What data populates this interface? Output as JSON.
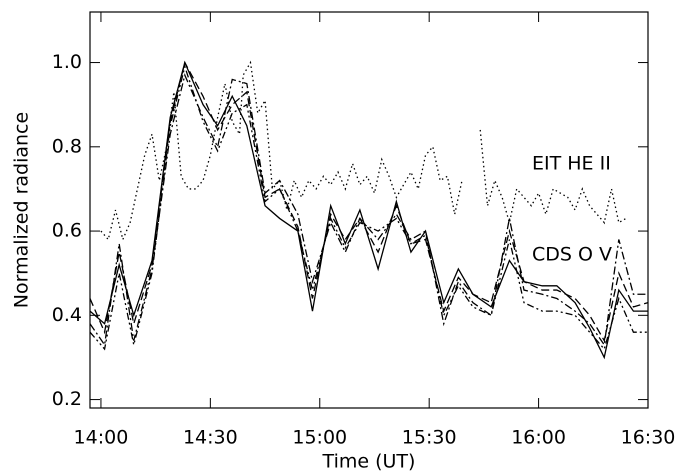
{
  "chart_data": {
    "type": "line",
    "xlabel": "Time (UT)",
    "ylabel": "Normalized radiance",
    "annotations": [
      "EIT HE II",
      "CDS O V"
    ],
    "xlim": [
      837,
      990
    ],
    "ylim": [
      0.18,
      1.12
    ],
    "xticks": [
      {
        "value": 840,
        "label": "14:00"
      },
      {
        "value": 870,
        "label": "14:30"
      },
      {
        "value": 900,
        "label": "15:00"
      },
      {
        "value": 930,
        "label": "15:30"
      },
      {
        "value": 960,
        "label": "16:00"
      },
      {
        "value": 990,
        "label": "16:30"
      }
    ],
    "yticks": [
      0.2,
      0.4,
      0.6,
      0.8,
      {
        "value": 1.0,
        "label": "1.0"
      }
    ],
    "series": [
      {
        "color": "#000000",
        "dash": "solid",
        "x": [
          837,
          841,
          845,
          849,
          854,
          859,
          863,
          868,
          872,
          876,
          880,
          885,
          889,
          894,
          898,
          903,
          907,
          911,
          916,
          921,
          925,
          929,
          934,
          938,
          942,
          947,
          952,
          956,
          961,
          965,
          970,
          974,
          978,
          982,
          986,
          990
        ],
        "values": [
          0.41,
          0.38,
          0.52,
          0.4,
          0.53,
          0.87,
          1.0,
          0.9,
          0.85,
          0.92,
          0.85,
          0.66,
          0.63,
          0.6,
          0.41,
          0.66,
          0.57,
          0.65,
          0.51,
          0.67,
          0.55,
          0.6,
          0.43,
          0.51,
          0.45,
          0.42,
          0.53,
          0.48,
          0.47,
          0.47,
          0.43,
          0.37,
          0.3,
          0.46,
          0.41,
          0.41
        ]
      },
      {
        "color": "#000000",
        "dash": "dashed",
        "x": [
          837,
          841,
          845,
          849,
          854,
          859,
          863,
          868,
          872,
          876,
          880,
          885,
          889,
          894,
          898,
          903,
          907,
          911,
          916,
          921,
          925,
          929,
          934,
          938,
          942,
          947,
          952,
          956,
          961,
          965,
          970,
          974,
          978,
          982,
          986,
          990
        ],
        "values": [
          0.44,
          0.36,
          0.55,
          0.38,
          0.52,
          0.86,
          1.0,
          0.92,
          0.84,
          0.9,
          0.93,
          0.68,
          0.7,
          0.61,
          0.44,
          0.64,
          0.58,
          0.63,
          0.55,
          0.66,
          0.57,
          0.58,
          0.41,
          0.49,
          0.45,
          0.43,
          0.6,
          0.48,
          0.46,
          0.46,
          0.44,
          0.4,
          0.34,
          0.5,
          0.42,
          0.43
        ]
      },
      {
        "color": "#000000",
        "dash": "dashdot",
        "x": [
          837,
          841,
          845,
          849,
          854,
          859,
          863,
          868,
          872,
          876,
          880,
          885,
          889,
          894,
          898,
          903,
          907,
          911,
          916,
          921,
          925,
          929,
          934,
          938,
          942,
          947,
          952,
          956,
          961,
          965,
          970,
          974,
          978,
          982,
          986,
          990
        ],
        "values": [
          0.38,
          0.33,
          0.57,
          0.34,
          0.51,
          0.83,
          0.97,
          0.87,
          0.8,
          0.96,
          0.95,
          0.69,
          0.72,
          0.64,
          0.48,
          0.62,
          0.55,
          0.63,
          0.58,
          0.64,
          0.58,
          0.6,
          0.38,
          0.48,
          0.43,
          0.4,
          0.63,
          0.46,
          0.45,
          0.44,
          0.41,
          0.38,
          0.33,
          0.58,
          0.45,
          0.45
        ]
      },
      {
        "color": "#000000",
        "dash": "dashdotdot",
        "x": [
          837,
          841,
          845,
          849,
          854,
          859,
          863,
          868,
          872,
          876,
          880,
          885,
          889,
          894,
          898,
          903,
          907,
          911,
          916,
          921,
          925,
          929,
          934,
          938,
          942,
          947,
          952,
          956,
          961,
          965,
          970,
          974,
          978,
          982,
          986,
          990
        ],
        "values": [
          0.36,
          0.32,
          0.5,
          0.33,
          0.5,
          0.85,
          0.99,
          0.86,
          0.79,
          0.88,
          0.9,
          0.67,
          0.7,
          0.6,
          0.46,
          0.63,
          0.56,
          0.62,
          0.6,
          0.63,
          0.57,
          0.59,
          0.4,
          0.47,
          0.42,
          0.4,
          0.58,
          0.43,
          0.41,
          0.41,
          0.4,
          0.36,
          0.32,
          0.44,
          0.36,
          0.36
        ]
      },
      {
        "color": "#000000",
        "dash": "dotted",
        "x": [
          840,
          842,
          844,
          846,
          848,
          850,
          852,
          854,
          856,
          858,
          860,
          862,
          864,
          866,
          868,
          870,
          872,
          874,
          876,
          878,
          879,
          881,
          883,
          885,
          887,
          889,
          891,
          893,
          895,
          897,
          899,
          901,
          903,
          905,
          907,
          909,
          911,
          913,
          915,
          917,
          919,
          921,
          923,
          925,
          927,
          929,
          931,
          933,
          935,
          937,
          939,
          941,
          944,
          946,
          948,
          950,
          952,
          954,
          956,
          958,
          960,
          962,
          964,
          966,
          968,
          970,
          972,
          974,
          976,
          978,
          980,
          982,
          984
        ],
        "values": [
          0.6,
          0.58,
          0.65,
          0.58,
          0.62,
          0.7,
          0.78,
          0.83,
          0.72,
          0.8,
          0.93,
          0.73,
          0.7,
          0.7,
          0.72,
          0.78,
          0.87,
          0.95,
          0.86,
          0.83,
          0.97,
          1.0,
          0.88,
          0.91,
          0.7,
          0.72,
          0.65,
          0.72,
          0.68,
          0.72,
          0.7,
          0.73,
          0.71,
          0.74,
          0.7,
          0.76,
          0.71,
          0.73,
          0.69,
          0.77,
          0.73,
          0.68,
          0.71,
          0.74,
          0.7,
          0.78,
          0.8,
          0.72,
          0.73,
          0.64,
          0.72,
          null,
          0.84,
          0.66,
          0.72,
          0.68,
          0.62,
          0.7,
          0.68,
          0.66,
          0.69,
          0.64,
          0.7,
          0.69,
          0.68,
          0.65,
          0.7,
          0.66,
          0.64,
          0.62,
          0.7,
          0.62,
          0.63
        ]
      }
    ]
  }
}
